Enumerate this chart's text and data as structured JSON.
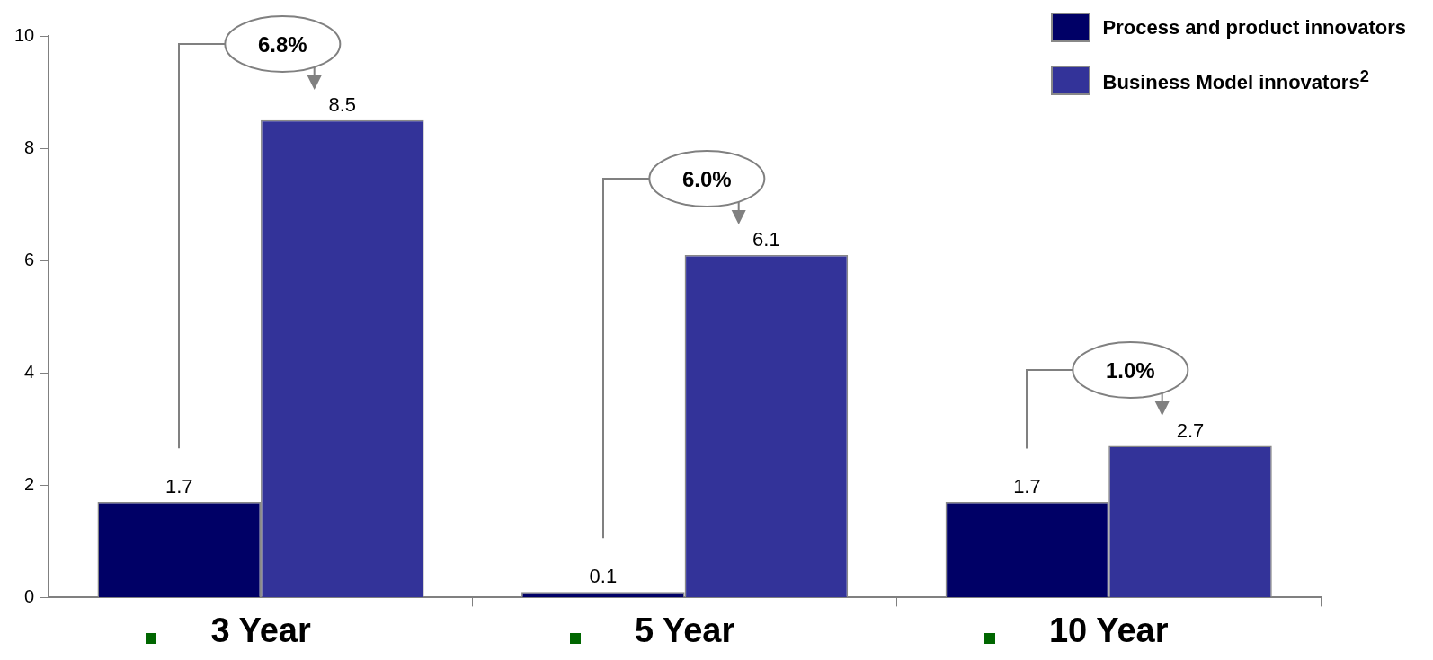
{
  "chart_data": {
    "type": "bar",
    "categories": [
      "3 Year",
      "5 Year",
      "10 Year"
    ],
    "series": [
      {
        "name": "Process and product innovators",
        "color": "#000066",
        "values": [
          1.7,
          0.1,
          1.7
        ]
      },
      {
        "name": "Business Model innovators$^{2}$",
        "color": "#333399",
        "values": [
          8.5,
          6.1,
          2.7
        ]
      }
    ],
    "ylim": [
      0,
      10
    ],
    "yticks": [
      0,
      2,
      4,
      6,
      8,
      10
    ],
    "grid": false,
    "legend": "top right",
    "data_labels": true,
    "annotations": [
      "6.8%",
      "6.0%",
      "1.0%"
    ]
  }
}
